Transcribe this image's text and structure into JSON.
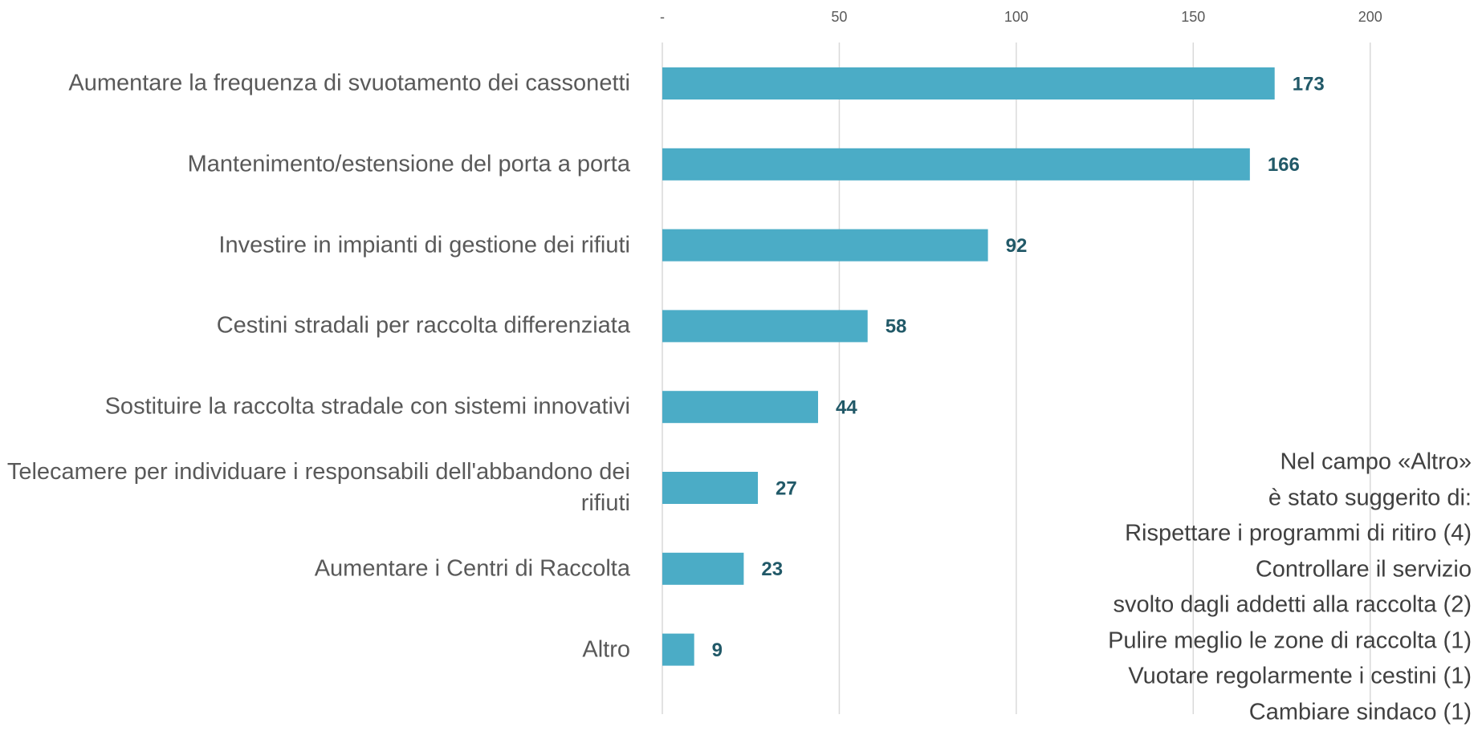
{
  "chart_data": {
    "type": "bar",
    "orientation": "horizontal",
    "categories": [
      "Aumentare la frequenza di svuotamento dei cassonetti",
      "Mantenimento/estensione del porta a porta",
      "Investire in impianti di gestione dei rifiuti",
      "Cestini stradali per raccolta differenziata",
      "Sostituire la raccolta stradale con sistemi innovativi",
      "Telecamere per individuare i responsabili dell'abbandono dei rifiuti",
      "Aumentare i Centri di Raccolta",
      "Altro"
    ],
    "values": [
      173,
      166,
      92,
      58,
      44,
      27,
      23,
      9
    ],
    "color": "#4bacc6",
    "xlim": [
      0,
      230
    ],
    "xticks": [
      {
        "value": 0,
        "label": "-"
      },
      50,
      100,
      150,
      200
    ],
    "grid": true,
    "annotation": [
      "Nel campo «Altro»",
      "è stato suggerito di:",
      "Rispettare i programmi di ritiro (4)",
      "Controllare il servizio",
      "svolto dagli addetti alla raccolta (2)",
      "Pulire meglio le zone di raccolta (1)",
      "Vuotare regolarmente i cestini (1)",
      "Cambiare sindaco (1)"
    ]
  }
}
